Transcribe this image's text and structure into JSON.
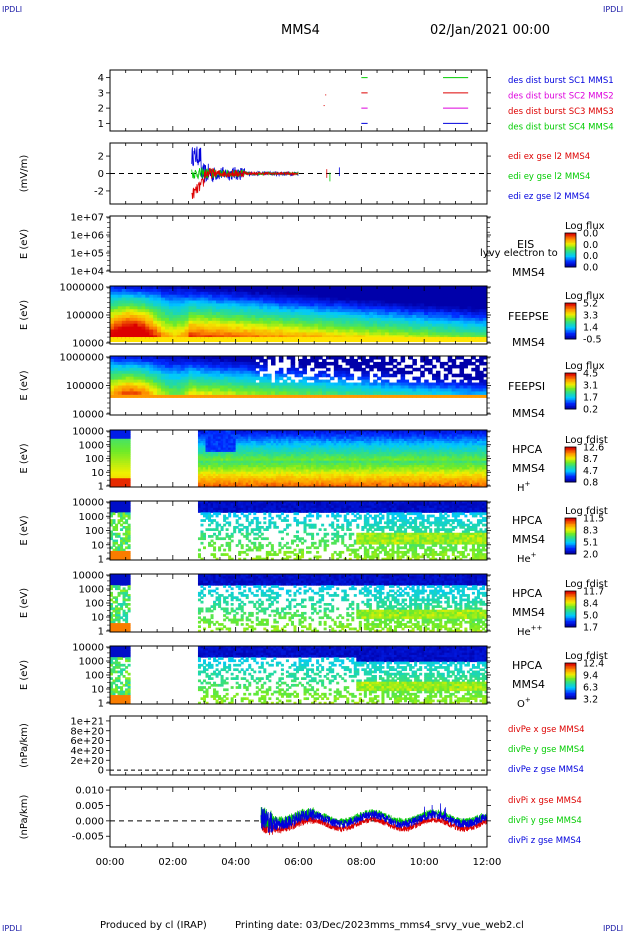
{
  "header": {
    "left_logo": "IPDLI",
    "right_logo": "IPDLI",
    "spacecraft": "MMS4",
    "datetime": "02/Jan/2021 00:00"
  },
  "footer": {
    "left_logo": "IPDLI",
    "right_logo": "IPDLI",
    "produced_by": "Produced by cl (IRAP)",
    "printing_date": "Printing date: 03/Dec/2023",
    "product": "mms_mms4_srvy_vue_web2.cl"
  },
  "colors": {
    "red": "#dd0000",
    "green": "#00cc00",
    "blue": "#0000dd",
    "magenta": "#dd00dd"
  },
  "chart_data": [
    {
      "type": "scatter",
      "panel": "burst",
      "y_ticks": [
        "1",
        "2",
        "3",
        "4"
      ],
      "ylim": [
        0.5,
        4.5
      ],
      "series": [
        {
          "name": "des dist burst SC1 MMS1",
          "color": "#0000dd"
        },
        {
          "name": "des dist burst SC2 MMS2",
          "color": "#dd00dd"
        },
        {
          "name": "des dist burst SC3 MMS3",
          "color": "#dd0000"
        },
        {
          "name": "des dist burst SC4 MMS4",
          "color": "#00cc00"
        }
      ],
      "segments": [
        {
          "row": 4,
          "x": [
            8.0,
            8.2
          ],
          "color": "#00cc00"
        },
        {
          "row": 4,
          "x": [
            10.6,
            11.4
          ],
          "color": "#00cc00"
        },
        {
          "row": 3,
          "x": [
            8.0,
            8.2
          ],
          "color": "#dd0000"
        },
        {
          "row": 3,
          "x": [
            10.6,
            11.4
          ],
          "color": "#dd0000"
        },
        {
          "row": 2,
          "x": [
            8.0,
            8.2
          ],
          "color": "#dd00dd"
        },
        {
          "row": 2,
          "x": [
            10.6,
            11.4
          ],
          "color": "#dd00dd"
        },
        {
          "row": 1,
          "x": [
            8.0,
            8.2
          ],
          "color": "#0000dd"
        },
        {
          "row": 1,
          "x": [
            10.6,
            11.4
          ],
          "color": "#0000dd"
        }
      ]
    },
    {
      "type": "line",
      "panel": "edi",
      "ylabel": "(mV/m)",
      "y_ticks": [
        "2",
        "0",
        "-2"
      ],
      "ylim": [
        -3.5,
        3.5
      ],
      "series": [
        {
          "name": "edi ex gse l2 MMS4",
          "color": "#dd0000"
        },
        {
          "name": "edi ey gse l2 MMS4",
          "color": "#00cc00"
        },
        {
          "name": "edi ez gse l2 MMS4",
          "color": "#0000dd"
        }
      ]
    },
    {
      "type": "heatmap",
      "panel": "eis",
      "ylabel": "E (eV)",
      "y_ticks": [
        "1e+07",
        "1e+06",
        "1e+05",
        "1e+04"
      ],
      "label": "EIS",
      "sc": "MMS4",
      "extra": "lyvy electron to",
      "cbar_title": "Log flux",
      "cbar_ticks": [
        "0.0",
        "0.0",
        "0.0",
        "0.0"
      ]
    },
    {
      "type": "heatmap",
      "panel": "feepse",
      "ylabel": "E (eV)",
      "y_ticks": [
        "1000000",
        "100000",
        "10000"
      ],
      "label": "FEEPSE",
      "sc": "MMS4",
      "cbar_title": "Log flux",
      "cbar_ticks": [
        "5.2",
        "3.3",
        "1.4",
        "-0.5"
      ]
    },
    {
      "type": "heatmap",
      "panel": "feepsi",
      "ylabel": "E (eV)",
      "y_ticks": [
        "1000000",
        "100000",
        "10000"
      ],
      "label": "FEEPSI",
      "sc": "MMS4",
      "cbar_title": "Log flux",
      "cbar_ticks": [
        "4.5",
        "3.1",
        "1.7",
        "0.2"
      ]
    },
    {
      "type": "heatmap",
      "panel": "hpca-h",
      "ylabel": "E (eV)",
      "y_ticks": [
        "10000",
        "1000",
        "100",
        "10",
        "1"
      ],
      "label": "HPCA",
      "sc": "MMS4",
      "species": "H",
      "species_sup": "+",
      "cbar_title": "Log fdist",
      "cbar_ticks": [
        "12.6",
        "8.7",
        "4.7",
        "0.8"
      ]
    },
    {
      "type": "heatmap",
      "panel": "hpca-he",
      "ylabel": "E (eV)",
      "y_ticks": [
        "10000",
        "1000",
        "100",
        "10",
        "1"
      ],
      "label": "HPCA",
      "sc": "MMS4",
      "species": "He",
      "species_sup": "+",
      "cbar_title": "Log fdist",
      "cbar_ticks": [
        "11.5",
        "8.3",
        "5.1",
        "2.0"
      ]
    },
    {
      "type": "heatmap",
      "panel": "hpca-hepp",
      "ylabel": "E (eV)",
      "y_ticks": [
        "10000",
        "1000",
        "100",
        "10",
        "1"
      ],
      "label": "HPCA",
      "sc": "MMS4",
      "species": "He",
      "species_sup": "++",
      "cbar_title": "Log fdist",
      "cbar_ticks": [
        "11.7",
        "8.4",
        "5.0",
        "1.7"
      ]
    },
    {
      "type": "heatmap",
      "panel": "hpca-o",
      "ylabel": "E (eV)",
      "y_ticks": [
        "10000",
        "1000",
        "100",
        "10",
        "1"
      ],
      "label": "HPCA",
      "sc": "MMS4",
      "species": "O",
      "species_sup": "+",
      "cbar_title": "Log fdist",
      "cbar_ticks": [
        "12.4",
        "9.4",
        "6.3",
        "3.2"
      ]
    },
    {
      "type": "line",
      "panel": "divpe",
      "ylabel": "(nPa/km)",
      "y_ticks": [
        "1e+21",
        "8e+20",
        "6e+20",
        "4e+20",
        "2e+20",
        "0"
      ],
      "ylim": [
        -1e+20,
        1.1e+21
      ],
      "series": [
        {
          "name": "divPe x gse MMS4",
          "color": "#dd0000"
        },
        {
          "name": "divPe y gse MMS4",
          "color": "#00cc00"
        },
        {
          "name": "divPe z gse MMS4",
          "color": "#0000dd"
        }
      ]
    },
    {
      "type": "line",
      "panel": "divpi",
      "ylabel": "(nPa/km)",
      "y_ticks": [
        "0.010",
        "0.005",
        "0.000",
        "-0.005"
      ],
      "ylim": [
        -0.0085,
        0.011
      ],
      "series": [
        {
          "name": "divPi x gse MMS4",
          "color": "#dd0000"
        },
        {
          "name": "divPi y gse MMS4",
          "color": "#00cc00"
        },
        {
          "name": "divPi z gse MMS4",
          "color": "#0000dd"
        }
      ],
      "x_ticks": [
        "00:00",
        "02:00",
        "04:00",
        "06:00",
        "08:00",
        "10:00",
        "12:00"
      ],
      "xlim_hours": [
        0,
        12
      ]
    }
  ]
}
